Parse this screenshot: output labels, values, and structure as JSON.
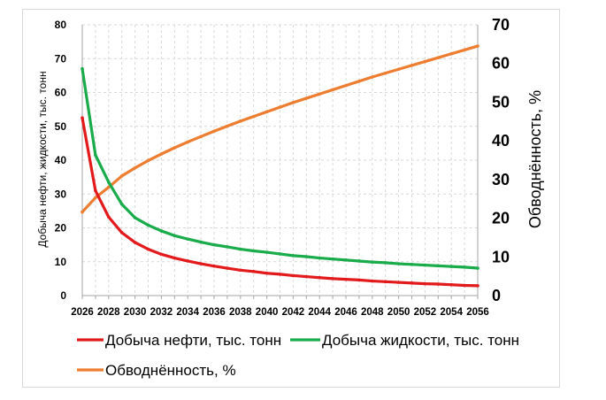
{
  "chart_data": {
    "type": "line",
    "title": "",
    "xlabel": "",
    "ylabel": "Добыча нефти, жидкости, тыс. тонн",
    "y2label": "Обводнённость, %",
    "xlim": [
      2026,
      2056
    ],
    "ylim": [
      0,
      80
    ],
    "y2lim": [
      0,
      70
    ],
    "x_ticks": [
      "2026",
      "2028",
      "2030",
      "2032",
      "2034",
      "2036",
      "2038",
      "2040",
      "2042",
      "2044",
      "2046",
      "2048",
      "2050",
      "2052",
      "2054",
      "2056"
    ],
    "y_ticks": [
      "0",
      "10",
      "20",
      "30",
      "40",
      "50",
      "60",
      "70",
      "80"
    ],
    "y2_ticks": [
      "0",
      "10",
      "20",
      "30",
      "40",
      "50",
      "60",
      "70"
    ],
    "grid": true,
    "legend_position": "bottom",
    "x": [
      2026,
      2027,
      2028,
      2029,
      2030,
      2031,
      2032,
      2033,
      2034,
      2035,
      2036,
      2037,
      2038,
      2039,
      2040,
      2041,
      2042,
      2043,
      2044,
      2045,
      2046,
      2047,
      2048,
      2049,
      2050,
      2051,
      2052,
      2053,
      2054,
      2055,
      2056
    ],
    "series": [
      {
        "name": "Добыча нефти, тыс. тонн",
        "axis": "left",
        "color": "#e31a1c",
        "values": [
          52.5,
          31,
          23.2,
          18.6,
          15.7,
          13.7,
          12.2,
          11.1,
          10.2,
          9.4,
          8.7,
          8.1,
          7.5,
          7.1,
          6.6,
          6.3,
          5.9,
          5.6,
          5.3,
          5.0,
          4.8,
          4.6,
          4.3,
          4.1,
          3.9,
          3.7,
          3.5,
          3.4,
          3.2,
          3.0,
          2.9
        ]
      },
      {
        "name": "Добыча жидкости, тыс. тонн",
        "axis": "left",
        "color": "#1aab4b",
        "values": [
          67,
          41.5,
          33.5,
          27,
          23,
          20.8,
          19.1,
          17.7,
          16.7,
          15.8,
          15.0,
          14.4,
          13.7,
          13.2,
          12.8,
          12.3,
          11.8,
          11.5,
          11.1,
          10.8,
          10.5,
          10.2,
          9.9,
          9.7,
          9.4,
          9.2,
          9.0,
          8.8,
          8.6,
          8.4,
          8.1
        ]
      },
      {
        "name": "Обводнённость, %",
        "axis": "right",
        "color": "#ed7d31",
        "values": [
          21.6,
          25.3,
          28.0,
          30.9,
          33.0,
          34.9,
          36.6,
          38.2,
          39.7,
          41.1,
          42.5,
          43.8,
          45.1,
          46.3,
          47.5,
          48.7,
          49.9,
          51.0,
          52.1,
          53.2,
          54.3,
          55.4,
          56.5,
          57.5,
          58.5,
          59.5,
          60.5,
          61.5,
          62.5,
          63.5,
          64.5
        ]
      }
    ],
    "legend": [
      "Добыча нефти, тыс. тонн",
      "Добыча жидкости, тыс. тонн",
      "Обводнённость, %"
    ]
  }
}
